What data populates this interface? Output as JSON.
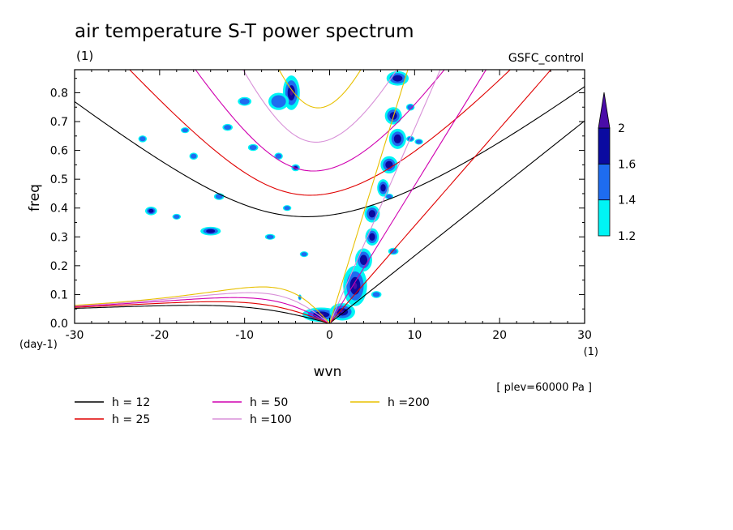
{
  "chart_data": {
    "type": "contour",
    "title": "air temperature S-T power spectrum",
    "subtitle_left": "(1)",
    "subtitle_right": "GSFC_control",
    "xlabel": "wvn",
    "ylabel": "freq",
    "x_unit": "(1)",
    "y_unit": "(day-1)",
    "level_note": "[ plev=60000 Pa ]",
    "xlim": [
      -30,
      30
    ],
    "ylim": [
      0,
      0.88
    ],
    "x_ticks": [
      -30,
      -20,
      -10,
      0,
      10,
      20,
      30
    ],
    "x_tick_labels": [
      "-30",
      "-20",
      "-10",
      "0",
      "10",
      "20",
      "30"
    ],
    "y_ticks": [
      0,
      0.1,
      0.2,
      0.3,
      0.4,
      0.5,
      0.6,
      0.7,
      0.8
    ],
    "y_tick_labels": [
      "0.0",
      "0.1",
      "0.2",
      "0.3",
      "0.4",
      "0.5",
      "0.6",
      "0.7",
      "0.8"
    ],
    "colorbar": {
      "levels": [
        1.2,
        1.4,
        1.6,
        2
      ],
      "labels": [
        "1.2",
        "1.4",
        "1.6",
        "2"
      ],
      "colors": [
        "#00f5f5",
        "#1e6cf0",
        "#0a0aa0",
        "#4a0ca8"
      ]
    },
    "dispersion_curves": [
      {
        "name": "h = 12",
        "h": 12,
        "color": "#000000"
      },
      {
        "name": "h = 25",
        "h": 25,
        "color": "#e00000"
      },
      {
        "name": "h = 50",
        "h": 50,
        "color": "#d000b0"
      },
      {
        "name": "h =100",
        "h": 100,
        "color": "#d890d8"
      },
      {
        "name": "h =200",
        "h": 200,
        "color": "#e8c000"
      }
    ],
    "spectral_peaks": [
      {
        "x": -4.5,
        "y": 0.8,
        "rx": 1.0,
        "ry": 0.06,
        "level": 3
      },
      {
        "x": -6,
        "y": 0.77,
        "rx": 1.2,
        "ry": 0.03,
        "level": 1
      },
      {
        "x": -10,
        "y": 0.77,
        "rx": 0.8,
        "ry": 0.015,
        "level": 1
      },
      {
        "x": -12,
        "y": 0.68,
        "rx": 0.6,
        "ry": 0.012,
        "level": 1
      },
      {
        "x": -9,
        "y": 0.61,
        "rx": 0.6,
        "ry": 0.012,
        "level": 1
      },
      {
        "x": -22,
        "y": 0.64,
        "rx": 0.5,
        "ry": 0.012,
        "level": 1
      },
      {
        "x": -17,
        "y": 0.67,
        "rx": 0.5,
        "ry": 0.01,
        "level": 1
      },
      {
        "x": -16,
        "y": 0.58,
        "rx": 0.5,
        "ry": 0.012,
        "level": 1
      },
      {
        "x": -13,
        "y": 0.44,
        "rx": 0.6,
        "ry": 0.012,
        "level": 1
      },
      {
        "x": -21,
        "y": 0.39,
        "rx": 0.7,
        "ry": 0.015,
        "level": 2
      },
      {
        "x": -14,
        "y": 0.32,
        "rx": 1.2,
        "ry": 0.015,
        "level": 2
      },
      {
        "x": -18,
        "y": 0.37,
        "rx": 0.5,
        "ry": 0.01,
        "level": 1
      },
      {
        "x": -4,
        "y": 0.54,
        "rx": 0.5,
        "ry": 0.012,
        "level": 2
      },
      {
        "x": -6,
        "y": 0.58,
        "rx": 0.5,
        "ry": 0.012,
        "level": 1
      },
      {
        "x": -5,
        "y": 0.4,
        "rx": 0.5,
        "ry": 0.01,
        "level": 1
      },
      {
        "x": -7,
        "y": 0.3,
        "rx": 0.6,
        "ry": 0.01,
        "level": 1
      },
      {
        "x": -3,
        "y": 0.24,
        "rx": 0.5,
        "ry": 0.01,
        "level": 1
      },
      {
        "x": -1,
        "y": 0.03,
        "rx": 2.2,
        "ry": 0.025,
        "level": 3
      },
      {
        "x": 1.5,
        "y": 0.04,
        "rx": 1.5,
        "ry": 0.03,
        "level": 3
      },
      {
        "x": 3,
        "y": 0.13,
        "rx": 1.4,
        "ry": 0.07,
        "level": 3
      },
      {
        "x": 4,
        "y": 0.22,
        "rx": 1.0,
        "ry": 0.04,
        "level": 2
      },
      {
        "x": 5,
        "y": 0.3,
        "rx": 0.8,
        "ry": 0.03,
        "level": 2
      },
      {
        "x": 5,
        "y": 0.38,
        "rx": 0.9,
        "ry": 0.03,
        "level": 2
      },
      {
        "x": 6.3,
        "y": 0.47,
        "rx": 0.7,
        "ry": 0.03,
        "level": 2
      },
      {
        "x": 7,
        "y": 0.55,
        "rx": 1.0,
        "ry": 0.03,
        "level": 2
      },
      {
        "x": 8,
        "y": 0.64,
        "rx": 1.0,
        "ry": 0.035,
        "level": 2
      },
      {
        "x": 7.5,
        "y": 0.72,
        "rx": 1.0,
        "ry": 0.03,
        "level": 2
      },
      {
        "x": 8,
        "y": 0.85,
        "rx": 1.3,
        "ry": 0.025,
        "level": 2
      },
      {
        "x": 9.5,
        "y": 0.64,
        "rx": 0.5,
        "ry": 0.01,
        "level": 1
      },
      {
        "x": 10.5,
        "y": 0.63,
        "rx": 0.5,
        "ry": 0.01,
        "level": 1
      },
      {
        "x": 7,
        "y": 0.44,
        "rx": 0.5,
        "ry": 0.01,
        "level": 1
      },
      {
        "x": 7.5,
        "y": 0.25,
        "rx": 0.6,
        "ry": 0.012,
        "level": 1
      },
      {
        "x": 9.5,
        "y": 0.75,
        "rx": 0.5,
        "ry": 0.012,
        "level": 1
      },
      {
        "x": 5.5,
        "y": 0.1,
        "rx": 0.6,
        "ry": 0.012,
        "level": 1
      },
      {
        "x": -3.5,
        "y": 0.09,
        "rx": 0.2,
        "ry": 0.01,
        "level": 1
      }
    ]
  },
  "legend": [
    {
      "label": "h = 12",
      "color": "#000000"
    },
    {
      "label": "h = 25",
      "color": "#e00000"
    },
    {
      "label": "h = 50",
      "color": "#d000b0"
    },
    {
      "label": "h =100",
      "color": "#d890d8"
    },
    {
      "label": "h =200",
      "color": "#e8c000"
    }
  ]
}
